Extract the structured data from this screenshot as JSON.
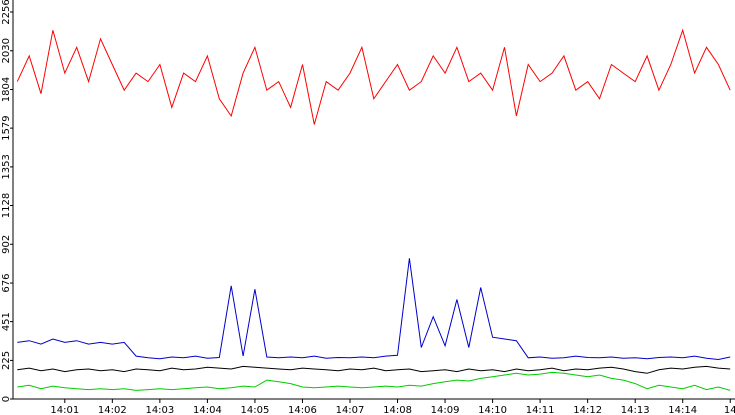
{
  "chart_data": {
    "type": "line",
    "x": [
      0,
      0.25,
      0.5,
      0.75,
      1,
      1.25,
      1.5,
      1.75,
      2,
      2.25,
      2.5,
      2.75,
      3,
      3.25,
      3.5,
      3.75,
      4,
      4.25,
      4.5,
      4.75,
      5,
      5.25,
      5.5,
      5.75,
      6,
      6.25,
      6.5,
      6.75,
      7,
      7.25,
      7.5,
      7.75,
      8,
      8.25,
      8.5,
      8.75,
      9,
      9.25,
      9.5,
      9.75,
      10,
      10.25,
      10.5,
      10.75,
      11,
      11.25,
      11.5,
      11.75,
      12,
      12.25,
      12.5,
      12.75,
      13,
      13.25,
      13.5,
      13.75,
      14,
      14.25,
      14.5,
      14.75,
      15
    ],
    "xlim": [
      -0.09,
      15.1
    ],
    "xticks": [
      {
        "value": 1,
        "label": "14:01"
      },
      {
        "value": 2,
        "label": "14:02"
      },
      {
        "value": 3,
        "label": "14:03"
      },
      {
        "value": 4,
        "label": "14:04"
      },
      {
        "value": 5,
        "label": "14:05"
      },
      {
        "value": 6,
        "label": "14:06"
      },
      {
        "value": 7,
        "label": "14:07"
      },
      {
        "value": 8,
        "label": "14:08"
      },
      {
        "value": 9,
        "label": "14:09"
      },
      {
        "value": 10,
        "label": "14:10"
      },
      {
        "value": 11,
        "label": "14:11"
      },
      {
        "value": 12,
        "label": "14:12"
      },
      {
        "value": 13,
        "label": "14:13"
      },
      {
        "value": 14,
        "label": "14:14"
      },
      {
        "value": 15,
        "label": "14"
      }
    ],
    "ylim": [
      0,
      2256
    ],
    "yticks": [
      0,
      225,
      451,
      676,
      902,
      1128,
      1353,
      1579,
      1804,
      2030,
      2256
    ],
    "grid": false,
    "series": [
      {
        "color": "#ff0000",
        "values": [
          1850,
          2000,
          1780,
          2150,
          1900,
          2050,
          1850,
          2100,
          1950,
          1800,
          1900,
          1850,
          1950,
          1700,
          1900,
          1850,
          2000,
          1750,
          1650,
          1900,
          2050,
          1800,
          1850,
          1700,
          1950,
          1600,
          1850,
          1800,
          1900,
          2050,
          1750,
          1850,
          1950,
          1800,
          1850,
          2000,
          1900,
          2050,
          1850,
          1900,
          1800,
          2050,
          1650,
          1950,
          1850,
          1900,
          2000,
          1800,
          1850,
          1750,
          1950,
          1900,
          1850,
          2000,
          1800,
          1950,
          2150,
          1900,
          2050,
          1950,
          1800
        ]
      },
      {
        "color": "#0000cc",
        "values": [
          330,
          340,
          320,
          350,
          330,
          340,
          320,
          330,
          320,
          330,
          250,
          240,
          235,
          245,
          240,
          250,
          238,
          242,
          660,
          250,
          640,
          245,
          240,
          245,
          240,
          250,
          238,
          242,
          240,
          245,
          240,
          250,
          255,
          820,
          300,
          480,
          310,
          580,
          300,
          650,
          360,
          350,
          340,
          240,
          245,
          238,
          240,
          250,
          242,
          240,
          245,
          238,
          240,
          235,
          242,
          245,
          240,
          250,
          238,
          230,
          245
        ]
      },
      {
        "color": "#000000",
        "values": [
          170,
          180,
          165,
          175,
          160,
          170,
          175,
          165,
          170,
          160,
          175,
          170,
          165,
          180,
          170,
          175,
          185,
          180,
          175,
          190,
          185,
          180,
          175,
          170,
          180,
          175,
          170,
          165,
          175,
          170,
          180,
          165,
          170,
          175,
          160,
          165,
          170,
          160,
          175,
          165,
          170,
          160,
          175,
          165,
          170,
          180,
          165,
          175,
          170,
          180,
          185,
          175,
          160,
          150,
          170,
          180,
          175,
          185,
          190,
          180,
          175
        ]
      },
      {
        "color": "#00cc00",
        "values": [
          70,
          80,
          60,
          75,
          65,
          60,
          55,
          60,
          55,
          60,
          50,
          55,
          60,
          55,
          60,
          65,
          70,
          60,
          65,
          75,
          70,
          110,
          100,
          90,
          70,
          65,
          70,
          75,
          70,
          65,
          70,
          75,
          70,
          80,
          75,
          90,
          100,
          110,
          105,
          120,
          130,
          140,
          150,
          140,
          145,
          155,
          150,
          140,
          130,
          140,
          120,
          110,
          90,
          60,
          80,
          70,
          60,
          80,
          55,
          70,
          50
        ]
      }
    ]
  }
}
